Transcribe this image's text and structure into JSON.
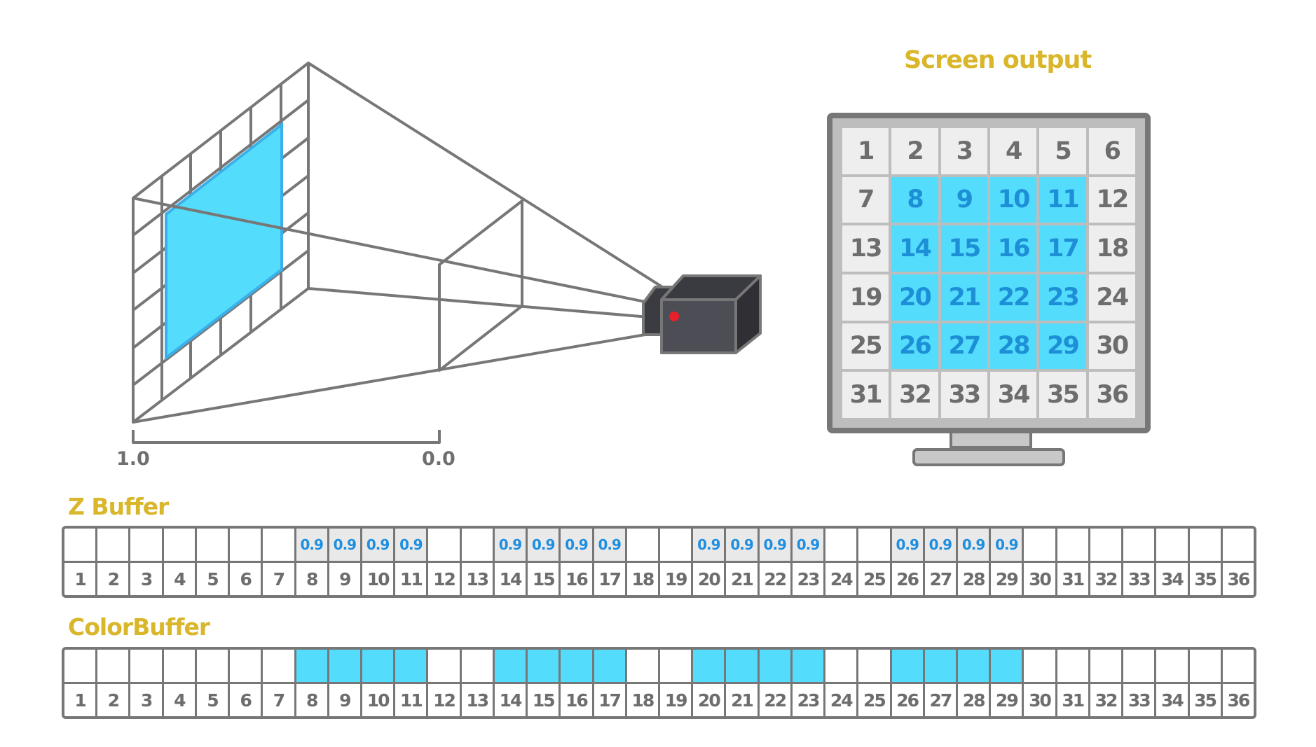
{
  "screen_title": "Screen output",
  "depth_axis": {
    "near_label": "1.0",
    "far_label": "0.0"
  },
  "screen_pixels": [
    "1",
    "2",
    "3",
    "4",
    "5",
    "6",
    "7",
    "8",
    "9",
    "10",
    "11",
    "12",
    "13",
    "14",
    "15",
    "16",
    "17",
    "18",
    "19",
    "20",
    "21",
    "22",
    "23",
    "24",
    "25",
    "26",
    "27",
    "28",
    "29",
    "30",
    "31",
    "32",
    "33",
    "34",
    "35",
    "36"
  ],
  "lit_pixels": [
    8,
    9,
    10,
    11,
    14,
    15,
    16,
    17,
    20,
    21,
    22,
    23,
    26,
    27,
    28,
    29
  ],
  "z_buffer": {
    "title": "Z Buffer",
    "values": [
      "",
      "",
      "",
      "",
      "",
      "",
      "",
      "0.9",
      "0.9",
      "0.9",
      "0.9",
      "",
      "",
      "0.9",
      "0.9",
      "0.9",
      "0.9",
      "",
      "",
      "0.9",
      "0.9",
      "0.9",
      "0.9",
      "",
      "",
      "0.9",
      "0.9",
      "0.9",
      "0.9",
      "",
      "",
      "",
      "",
      "",
      "",
      ""
    ]
  },
  "color_buffer": {
    "title": "ColorBuffer"
  },
  "colors": {
    "accent_yellow": "#d9b62a",
    "fill_cyan": "#54dcfc",
    "text_blue": "#1d8fd6",
    "outline_gray": "#777777",
    "camera_dark": "#4a4a52",
    "lens_red": "#e8202a"
  },
  "icons": {
    "camera": "camera-icon",
    "monitor": "monitor-icon"
  }
}
